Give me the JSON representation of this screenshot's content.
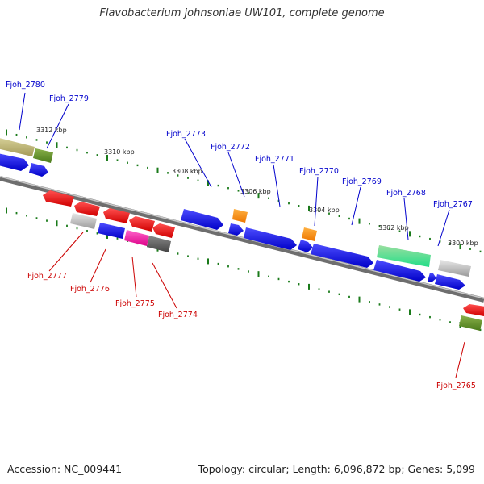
{
  "title": "Flavobacterium johnsoniae UW101, complete genome",
  "footer": {
    "accession": "Accession: NC_009441",
    "stats": "Topology: circular; Length: 6,096,872 bp; Genes: 5,099"
  },
  "colors": {
    "forward_label": "#0000cc",
    "reverse_label": "#cc0000",
    "tick": "#1a7a1a",
    "backbone": "#888888"
  },
  "kbp_labels": [
    "3312 kbp",
    "3310 kbp",
    "3308 kbp",
    "3306 kbp",
    "3304 kbp",
    "3302 kbp",
    "3300 kbp"
  ],
  "forward_genes": [
    "Fjoh_2780",
    "Fjoh_2779",
    "Fjoh_2773",
    "Fjoh_2772",
    "Fjoh_2771",
    "Fjoh_2770",
    "Fjoh_2769",
    "Fjoh_2768",
    "Fjoh_2767"
  ],
  "reverse_genes": [
    "Fjoh_2777",
    "Fjoh_2776",
    "Fjoh_2775",
    "Fjoh_2774",
    "Fjoh_2765"
  ]
}
